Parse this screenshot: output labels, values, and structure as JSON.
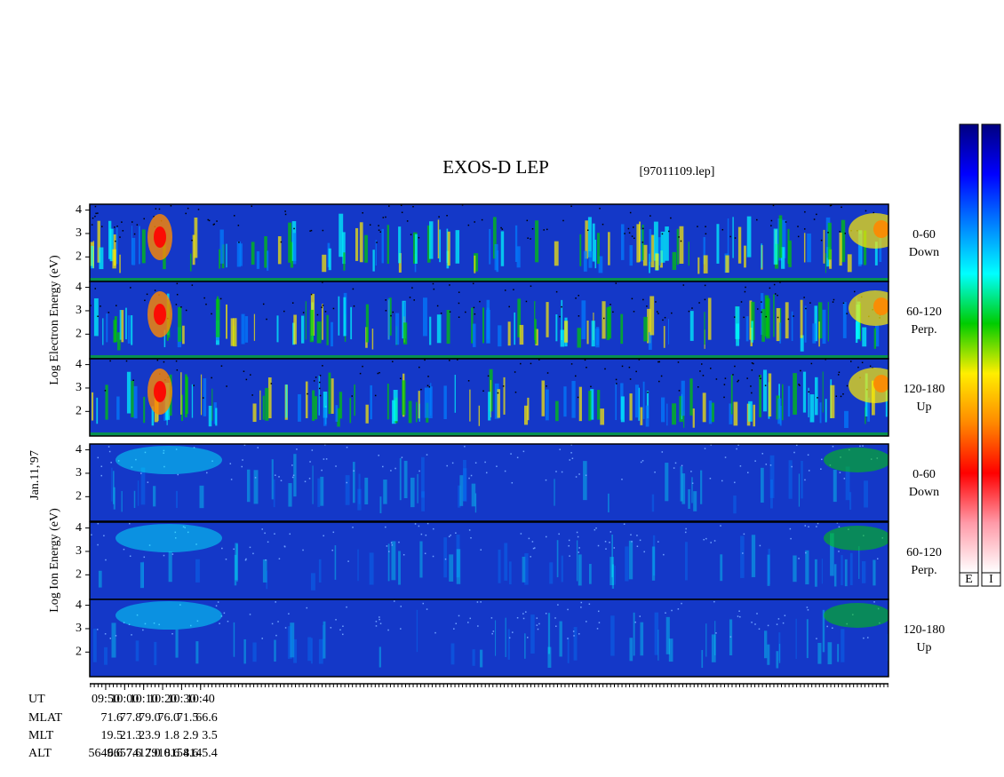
{
  "chart_data": {
    "type": "spectrogram",
    "title": "EXOS-D LEP",
    "file": "[97011109.lep]",
    "date": "Jan.11,'97",
    "xlim": [
      581.6,
      1002.4
    ],
    "xticks": [
      {
        "value": 590,
        "label": "09:50"
      },
      {
        "value": 600,
        "label": "10:00"
      },
      {
        "value": 610,
        "label": "10:10"
      },
      {
        "value": 620,
        "label": "10:20"
      },
      {
        "value": 630,
        "label": "10:30"
      },
      {
        "value": 640,
        "label": "10:40"
      }
    ],
    "minor_tick_interval": 2,
    "ylim": [
      0.95,
      4.25
    ],
    "yticks": [
      2,
      3,
      4
    ],
    "groups": [
      {
        "ylabel": "Log Electron Energy (eV)",
        "panels": [
          {
            "angle": "0-60",
            "direction": "Down"
          },
          {
            "angle": "60-120",
            "direction": "Perp."
          },
          {
            "angle": "120-180",
            "direction": "Up"
          }
        ]
      },
      {
        "ylabel": "Log Ion Energy (eV)",
        "panels": [
          {
            "angle": "0-60",
            "direction": "Down"
          },
          {
            "angle": "60-120",
            "direction": "Perp."
          },
          {
            "angle": "120-180",
            "direction": "Up"
          }
        ]
      }
    ],
    "ephemeris": {
      "ut_label": "UT",
      "rows": [
        {
          "label": "MLAT",
          "values": [
            "71.6",
            "77.8",
            "79.0",
            "76.0",
            "71.5",
            "66.6"
          ]
        },
        {
          "label": "MLT",
          "values": [
            "19.5",
            "21.3",
            "23.9",
            "1.8",
            "2.9",
            "3.5"
          ]
        },
        {
          "label": "ALT",
          "values": [
            "5649.6",
            "6657.6",
            "7412.0",
            "7910.6",
            "8154.6",
            "8145.4"
          ]
        }
      ]
    },
    "colorbars": [
      "E",
      "I"
    ],
    "colormap": [
      "#ffffff",
      "#ff9aa8",
      "#ff0000",
      "#ff8800",
      "#ffee00",
      "#00cc00",
      "#00ffff",
      "#0080ff",
      "#0000ff",
      "#000080"
    ]
  }
}
